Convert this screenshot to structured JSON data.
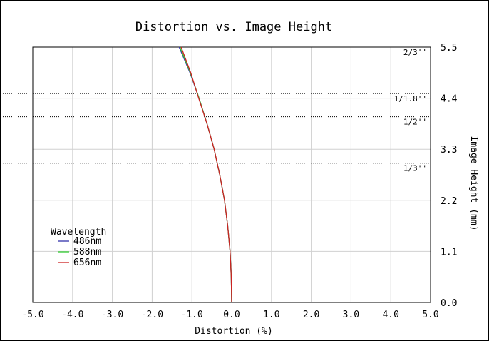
{
  "chart_data": {
    "type": "line",
    "title": "Distortion vs. Image Height",
    "xlabel": "Distortion (%)",
    "ylabel": "Image Height (mm)",
    "xlim": [
      -5.0,
      5.0
    ],
    "ylim": [
      0.0,
      5.5
    ],
    "x_ticks": [
      "-5.0",
      "-4.0",
      "-3.0",
      "-2.0",
      "-1.0",
      "0.0",
      "1.0",
      "2.0",
      "3.0",
      "4.0",
      "5.0"
    ],
    "y_ticks": [
      "0.0",
      "1.1",
      "2.2",
      "3.3",
      "4.4",
      "5.5"
    ],
    "grid": true,
    "y_axis_side": "right",
    "legend": {
      "title": "Wavelength",
      "placement": "lower-left",
      "entries": [
        {
          "name": "486nm",
          "color": "#3333aa"
        },
        {
          "name": "588nm",
          "color": "#33cc33"
        },
        {
          "name": "656nm",
          "color": "#cc2222"
        }
      ]
    },
    "series": [
      {
        "name": "486nm",
        "color": "#3333aa",
        "x": [
          0.0,
          -0.01,
          -0.04,
          -0.1,
          -0.18,
          -0.3,
          -0.44,
          -0.62,
          -0.82,
          -1.05,
          -1.32
        ],
        "y": [
          0.0,
          0.55,
          1.1,
          1.65,
          2.2,
          2.75,
          3.3,
          3.85,
          4.4,
          4.95,
          5.5
        ]
      },
      {
        "name": "588nm",
        "color": "#33cc33",
        "x": [
          0.0,
          -0.01,
          -0.04,
          -0.1,
          -0.18,
          -0.3,
          -0.44,
          -0.62,
          -0.82,
          -1.04,
          -1.3
        ],
        "y": [
          0.0,
          0.55,
          1.1,
          1.65,
          2.2,
          2.75,
          3.3,
          3.85,
          4.4,
          4.95,
          5.5
        ]
      },
      {
        "name": "656nm",
        "color": "#cc2222",
        "x": [
          0.0,
          -0.01,
          -0.04,
          -0.1,
          -0.18,
          -0.3,
          -0.44,
          -0.62,
          -0.83,
          -1.03,
          -1.27
        ],
        "y": [
          0.0,
          0.55,
          1.1,
          1.65,
          2.2,
          2.75,
          3.3,
          3.85,
          4.4,
          4.95,
          5.5
        ]
      }
    ],
    "sensor_formats": [
      {
        "label": "1/3''",
        "height": 3.0
      },
      {
        "label": "1/2''",
        "height": 4.0
      },
      {
        "label": "1/1.8''",
        "height": 4.5
      },
      {
        "label": "2/3''",
        "height": 5.5
      }
    ]
  }
}
